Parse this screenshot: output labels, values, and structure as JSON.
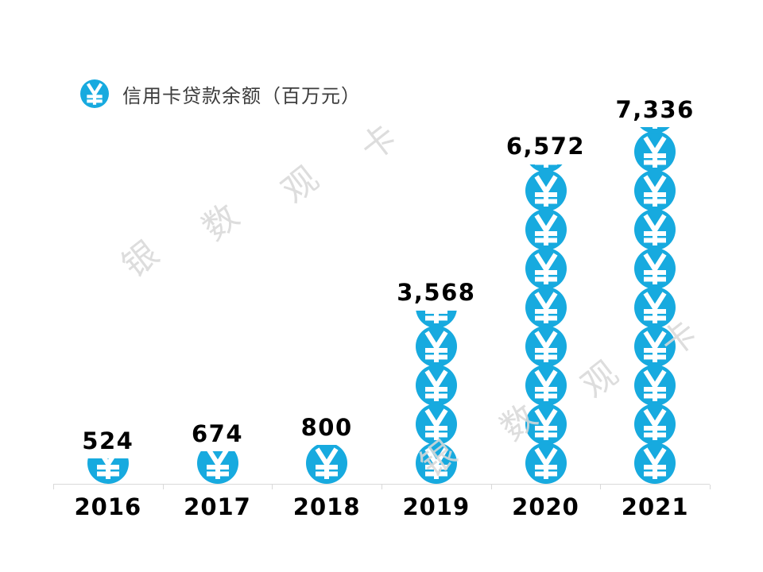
{
  "legend": {
    "icon": "yuan-coin-icon",
    "label": "信用卡贷款余额（百万元）"
  },
  "watermarks": {
    "chars": [
      "银",
      "数",
      "观",
      "卡"
    ]
  },
  "chart_data": {
    "type": "bar",
    "subtype": "pictogram-stacked-coins",
    "title": "",
    "series_name": "信用卡贷款余额（百万元）",
    "categories": [
      "2016",
      "2017",
      "2018",
      "2019",
      "2020",
      "2021"
    ],
    "values": [
      524,
      674,
      800,
      3568,
      6572,
      7336
    ],
    "value_labels": [
      "524",
      "674",
      "800",
      "3,568",
      "6,572",
      "7,336"
    ],
    "unit": "百万元",
    "icon_unit_value": 800,
    "ylim": [
      0,
      7336
    ],
    "grid": false,
    "legend_position": "top-left",
    "colors": {
      "coin": "#17aadf",
      "coin_glyph": "#ffffff",
      "axis": "#d9d9d9",
      "label_text": "#000000",
      "legend_text": "#3d3d3d",
      "watermark": "#d9d9d9"
    }
  }
}
